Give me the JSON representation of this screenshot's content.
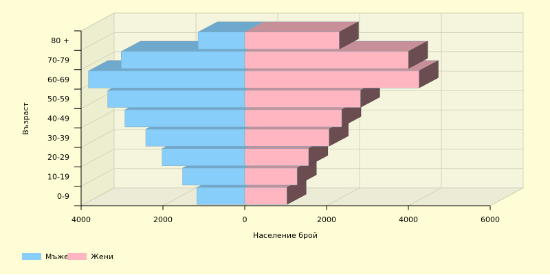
{
  "colors": {
    "background": "#fffdd5",
    "wall_back": "#f4f5dc",
    "wall_side": "#eceecf",
    "floor": "#ececd6",
    "male": "#87cefa",
    "male_top": "#6ea9cd",
    "female": "#ffb6c1",
    "female_top": "#c79098",
    "female_side": "#6b4c51"
  },
  "chart_data": {
    "type": "bar",
    "orientation": "horizontal",
    "title": "",
    "xlabel": "Население брой",
    "ylabel": "Възраст",
    "xlim": [
      -4000,
      6000
    ],
    "x_ticks": [
      -4000,
      -2000,
      0,
      2000,
      4000,
      6000
    ],
    "x_tick_labels": [
      "4000",
      "2000",
      "0",
      "2000",
      "4000",
      "6000"
    ],
    "categories": [
      "0-9",
      "10-19",
      "20-29",
      "30-39",
      "40-49",
      "50-59",
      "60-69",
      "70-79",
      "80 +"
    ],
    "series": [
      {
        "name": "Мъже",
        "values": [
          1170,
          1520,
          2020,
          2420,
          2930,
          3350,
          3820,
          3020,
          1140
        ]
      },
      {
        "name": "Жени",
        "values": [
          1030,
          1280,
          1560,
          2060,
          2370,
          2830,
          4260,
          4000,
          2310
        ]
      }
    ],
    "grid": true,
    "legend_position": "bottom-left"
  }
}
